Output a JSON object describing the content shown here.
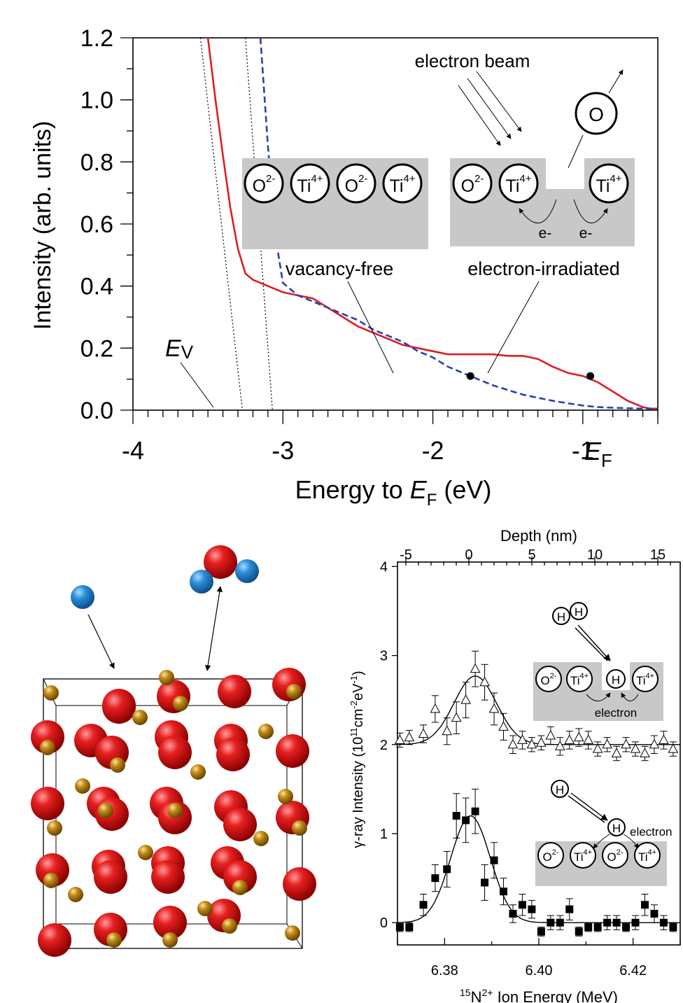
{
  "chart_data": [
    {
      "type": "line",
      "title": "",
      "xlabel": "Energy to EF (eV)",
      "xlabel_parts": {
        "a": "Energy to ",
        "b": "E",
        "c": "F",
        "d": " (eV)"
      },
      "ylabel": "Intensity (arb. units)",
      "xlim": [
        -4.0,
        -0.5
      ],
      "ylim": [
        0.0,
        1.2
      ],
      "xticks": [
        -4,
        -3,
        -2,
        -1
      ],
      "xtick_labels": [
        "-4",
        "-3",
        "-2",
        "-1"
      ],
      "yticks": [
        0.0,
        0.2,
        0.4,
        0.6,
        0.8,
        1.0,
        1.2
      ],
      "ytick_labels": [
        "0.0",
        "0.2",
        "0.4",
        "0.6",
        "0.8",
        "1.0",
        "1.2"
      ],
      "ef_label": {
        "main": "E",
        "sub": "F"
      },
      "ev_label": {
        "main": "E",
        "sub": "V"
      },
      "series": [
        {
          "name": "electron-irradiated",
          "color": "#dd1e22",
          "style": "solid",
          "x": [
            -3.5,
            -3.45,
            -3.4,
            -3.35,
            -3.3,
            -3.25,
            -3.2,
            -3.15,
            -3.1,
            -3.05,
            -3.0,
            -2.9,
            -2.8,
            -2.7,
            -2.6,
            -2.5,
            -2.4,
            -2.3,
            -2.2,
            -2.1,
            -2.0,
            -1.9,
            -1.8,
            -1.7,
            -1.6,
            -1.5,
            -1.4,
            -1.3,
            -1.2,
            -1.1,
            -1.0,
            -0.9,
            -0.8,
            -0.7,
            -0.6,
            -0.55,
            -0.5
          ],
          "y": [
            1.2,
            1.0,
            0.82,
            0.65,
            0.52,
            0.44,
            0.42,
            0.41,
            0.4,
            0.39,
            0.38,
            0.37,
            0.36,
            0.33,
            0.3,
            0.27,
            0.25,
            0.23,
            0.21,
            0.2,
            0.19,
            0.18,
            0.18,
            0.18,
            0.18,
            0.175,
            0.175,
            0.165,
            0.14,
            0.12,
            0.11,
            0.09,
            0.06,
            0.03,
            0.01,
            0.005,
            0.005
          ]
        },
        {
          "name": "vacancy-free",
          "color": "#2b3fb0",
          "style": "dashed",
          "x": [
            -3.15,
            -3.1,
            -3.05,
            -3.0,
            -2.9,
            -2.8,
            -2.7,
            -2.6,
            -2.5,
            -2.4,
            -2.3,
            -2.2,
            -2.1,
            -2.0,
            -1.9,
            -1.8,
            -1.7,
            -1.6,
            -1.5,
            -1.4,
            -1.3,
            -1.2,
            -1.1,
            -1.0,
            -0.9,
            -0.8,
            -0.7,
            -0.6,
            -0.5
          ],
          "y": [
            1.2,
            0.85,
            0.56,
            0.41,
            0.37,
            0.35,
            0.33,
            0.31,
            0.29,
            0.26,
            0.24,
            0.22,
            0.19,
            0.17,
            0.14,
            0.12,
            0.1,
            0.08,
            0.065,
            0.05,
            0.04,
            0.03,
            0.022,
            0.015,
            0.01,
            0.008,
            0.006,
            0.005,
            0.005
          ]
        }
      ],
      "markers": [
        {
          "label": "vacancy-free",
          "x": -1.75,
          "y": 0.11
        },
        {
          "label": "electron-irradiated",
          "x": -0.95,
          "y": 0.11
        }
      ],
      "annotations": {
        "electron_beam": "electron beam",
        "vacancy_free": "vacancy-free",
        "electron_irradiated": "electron-irradiated",
        "electron_symbol": "e-",
        "oxygen_symbol": "O"
      },
      "ions": [
        {
          "base": "O",
          "sup": "2-"
        },
        {
          "base": "Ti",
          "sup": "4+"
        }
      ]
    },
    {
      "type": "scatter",
      "xlabel": "15N2+ Ion Energy (MeV)",
      "xlabel_parts": {
        "pre": "15",
        "n": "N",
        "sup": "2+",
        "rest": " Ion Energy (MeV)"
      },
      "ylabel": "γ-ray Intensity (10¹¹cm⁻²eV⁻¹)",
      "ylabel_parts": {
        "a": "γ-ray Intensity (10",
        "b": "11",
        "c": "cm",
        "d": "-2",
        "e": "eV",
        "f": "-1",
        "g": ")"
      },
      "top_axis_label": "Depth (nm)",
      "xlim": [
        6.37,
        6.43
      ],
      "ylim": [
        -0.25,
        4.05
      ],
      "xticks": [
        6.38,
        6.4,
        6.42
      ],
      "xtick_labels": [
        "6.38",
        "6.40",
        "6.42"
      ],
      "yticks": [
        0,
        1,
        2,
        3,
        4
      ],
      "ytick_labels": [
        "0",
        "1",
        "2",
        "3",
        "4"
      ],
      "depth_ticks": [
        -5,
        0,
        5,
        10,
        15
      ],
      "depth_tick_labels": [
        "-5",
        "0",
        "5",
        "10",
        "15"
      ],
      "series": [
        {
          "name": "",
          "marker": "open-triangle",
          "x": [
            6.3705,
            6.3725,
            6.3755,
            6.378,
            6.3805,
            6.3825,
            6.3845,
            6.3865,
            6.3885,
            6.3905,
            6.3925,
            6.3945,
            6.3965,
            6.3985,
            6.4005,
            6.4025,
            6.4045,
            6.4065,
            6.4085,
            6.4105,
            6.4125,
            6.4145,
            6.4165,
            6.4185,
            6.4205,
            6.4225,
            6.4245,
            6.4265,
            6.4285
          ],
          "y": [
            2.05,
            2.08,
            2.12,
            2.4,
            2.15,
            2.3,
            2.5,
            2.85,
            2.7,
            2.4,
            2.2,
            2.0,
            2.05,
            2.0,
            2.02,
            2.1,
            1.98,
            2.05,
            2.08,
            2.05,
            1.95,
            2.0,
            1.9,
            2.0,
            1.95,
            1.9,
            2.0,
            2.05,
            1.95
          ],
          "err": [
            0.08,
            0.08,
            0.1,
            0.15,
            0.15,
            0.18,
            0.2,
            0.2,
            0.2,
            0.18,
            0.15,
            0.1,
            0.1,
            0.08,
            0.08,
            0.1,
            0.1,
            0.1,
            0.1,
            0.1,
            0.08,
            0.08,
            0.08,
            0.08,
            0.08,
            0.08,
            0.1,
            0.1,
            0.08
          ],
          "fit": {
            "baseline": 2.0,
            "amplitude": 0.77,
            "center": 6.3865,
            "sigma": 0.0045
          }
        },
        {
          "name": "",
          "marker": "filled-square",
          "x": [
            6.3705,
            6.3725,
            6.3755,
            6.378,
            6.3805,
            6.3825,
            6.3845,
            6.3865,
            6.3885,
            6.3905,
            6.3925,
            6.3945,
            6.3965,
            6.3985,
            6.4005,
            6.4025,
            6.4045,
            6.4065,
            6.4085,
            6.4105,
            6.4125,
            6.4145,
            6.4165,
            6.4185,
            6.4205,
            6.4225,
            6.4245,
            6.4265,
            6.4285
          ],
          "y": [
            -0.05,
            -0.05,
            0.2,
            0.5,
            0.6,
            1.2,
            1.15,
            1.25,
            0.45,
            0.7,
            0.35,
            0.1,
            0.2,
            0.15,
            -0.1,
            0.0,
            0.0,
            0.15,
            -0.1,
            -0.05,
            -0.05,
            0.0,
            0.0,
            -0.05,
            0.0,
            0.2,
            0.1,
            0.0,
            -0.05
          ],
          "err": [
            0.05,
            0.05,
            0.12,
            0.15,
            0.2,
            0.25,
            0.25,
            0.25,
            0.2,
            0.2,
            0.15,
            0.1,
            0.12,
            0.1,
            0.05,
            0.08,
            0.08,
            0.12,
            0.05,
            0.05,
            0.05,
            0.08,
            0.08,
            0.05,
            0.08,
            0.12,
            0.1,
            0.08,
            0.05
          ],
          "fit": {
            "baseline": 0.0,
            "amplitude": 1.2,
            "center": 6.3855,
            "sigma": 0.0042
          }
        }
      ],
      "annotations": {
        "electron": "electron",
        "hydrogen_symbol": "H"
      }
    }
  ],
  "illustration": {
    "colors": {
      "oxygen": "#d21414",
      "titanium": "#b07a10",
      "adsorbate": "#2a8ed8"
    }
  }
}
